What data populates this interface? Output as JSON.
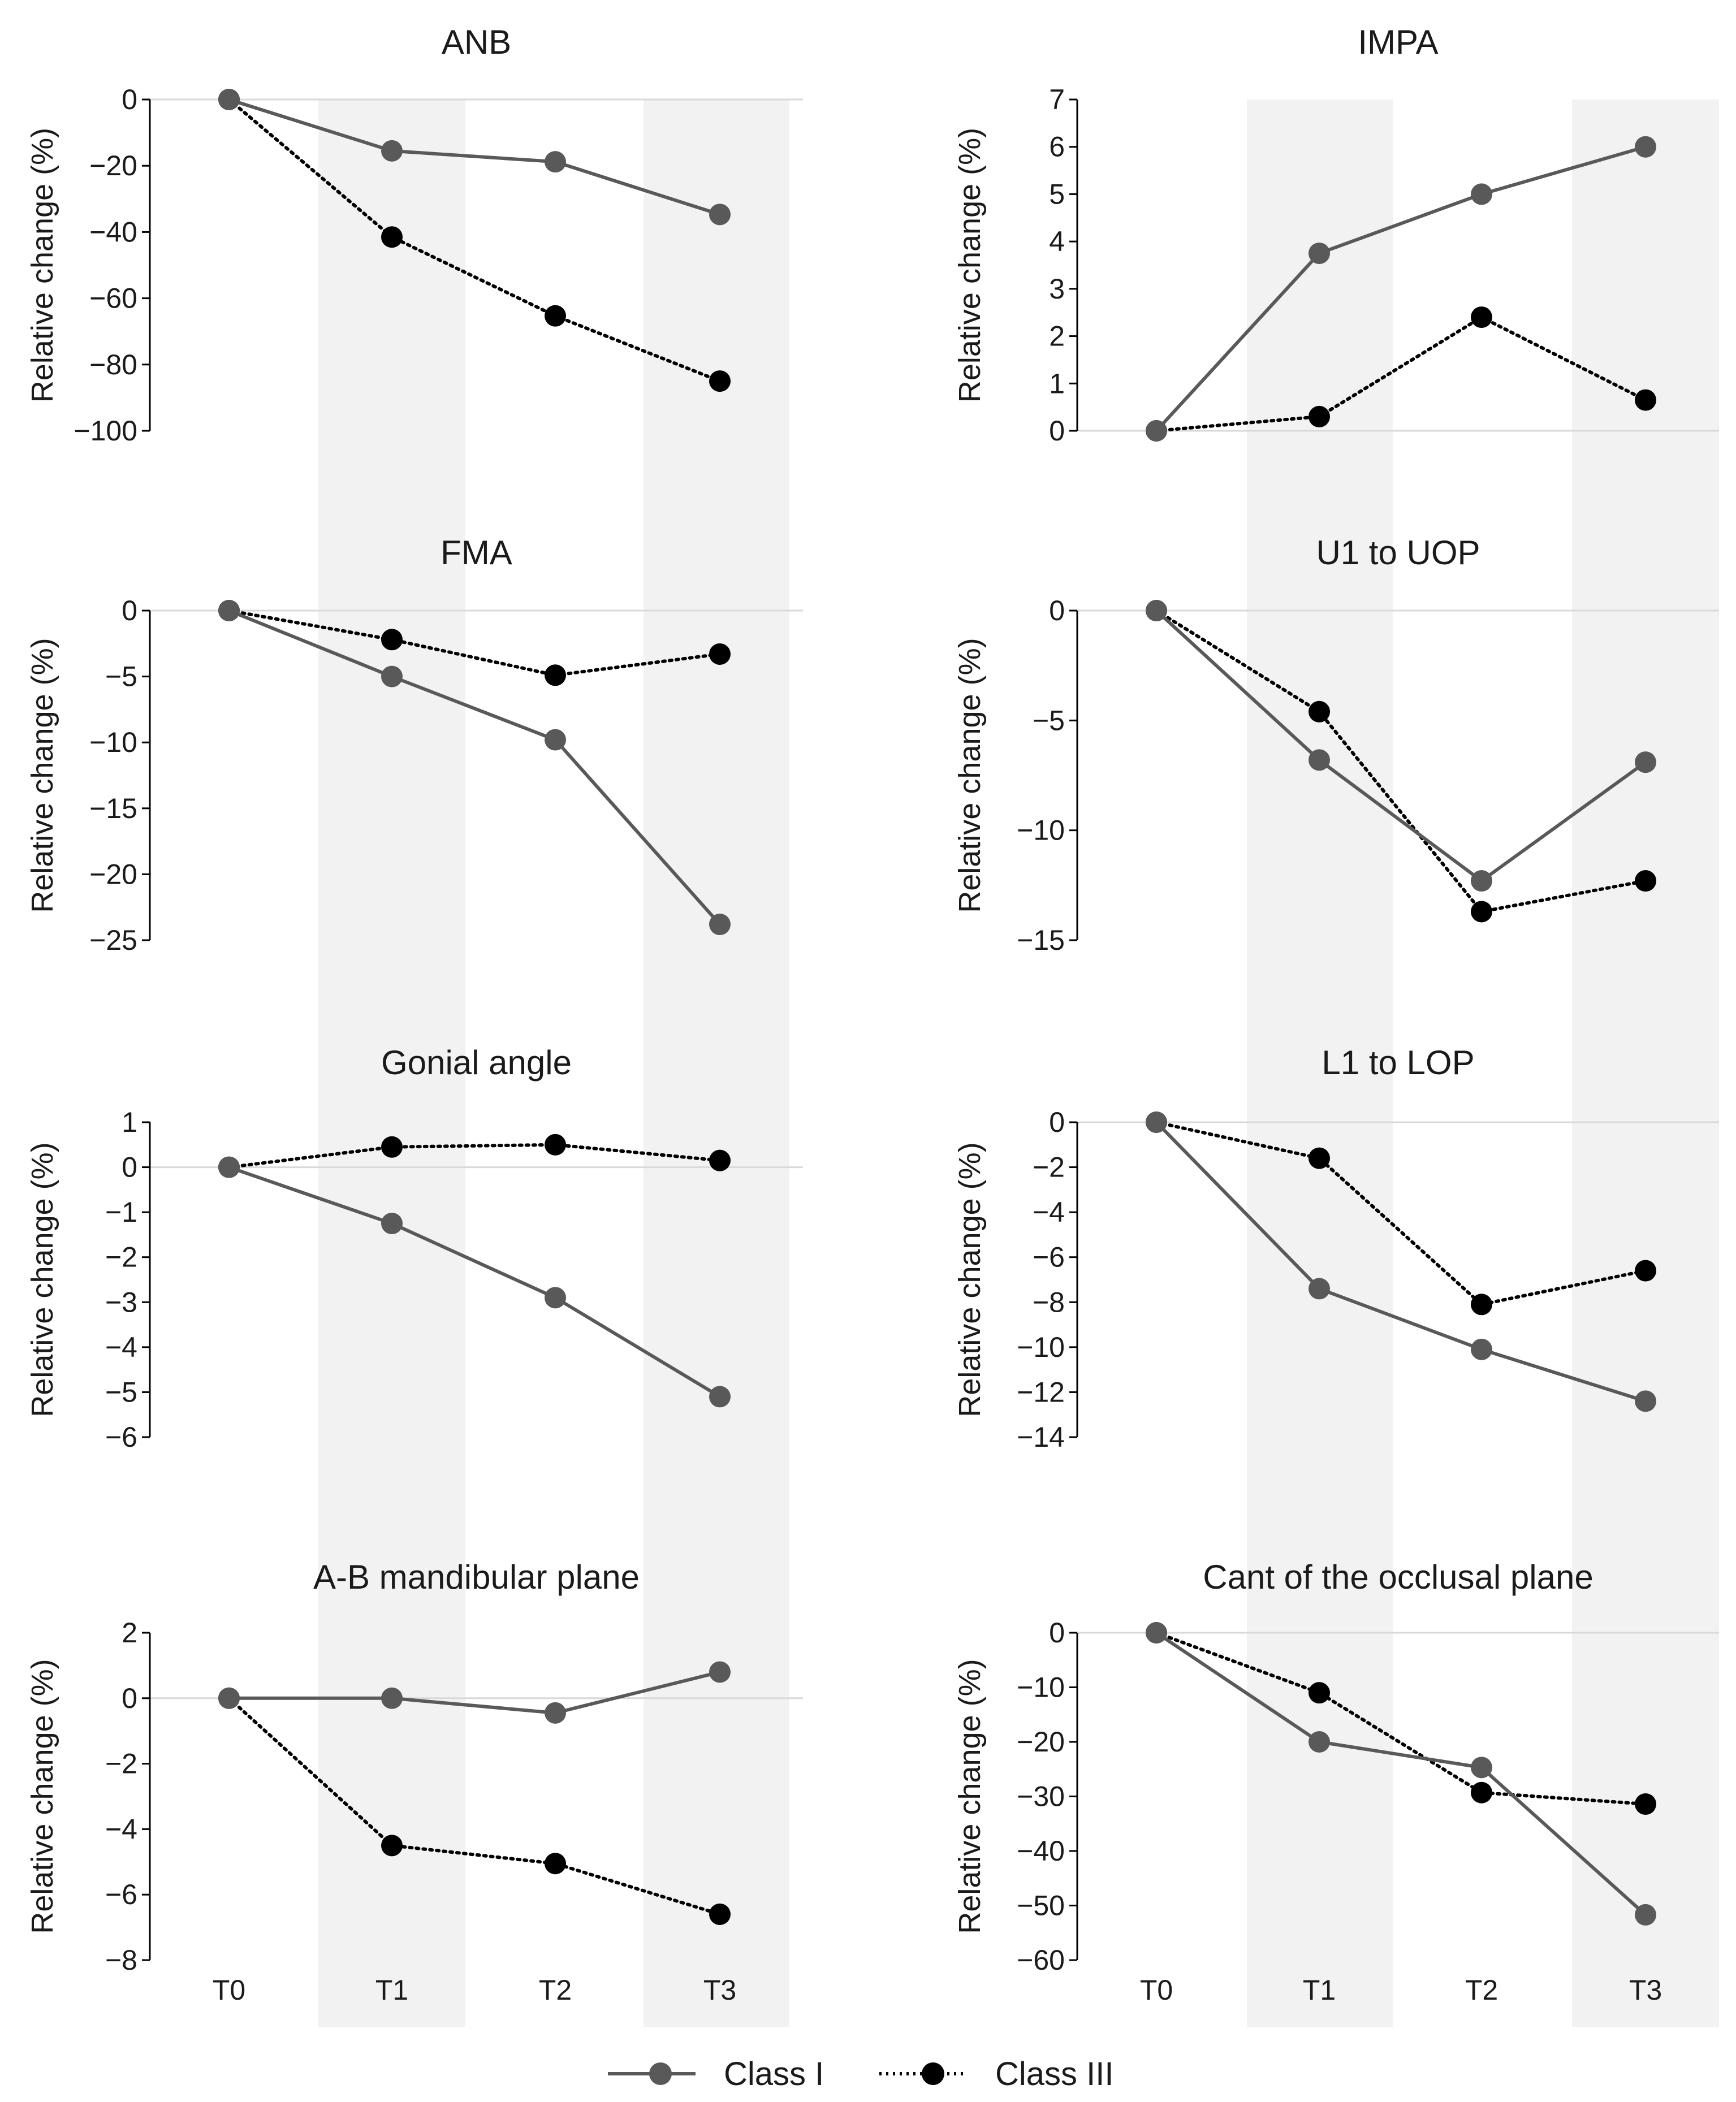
{
  "colors": {
    "class_i": "#595959",
    "class_iii": "#000000",
    "axis": "#000000",
    "zero_line": "#d9d9d9",
    "shade": "#f2f2f2"
  },
  "legend": {
    "class_i_label": "Class I",
    "class_iii_label": "Class III"
  },
  "chart_data": [
    {
      "type": "line",
      "title": "ANB",
      "ylabel": "Relative change (%)",
      "xlabel": "",
      "categories": [
        "T0",
        "T1",
        "T2",
        "T3"
      ],
      "ylim": [
        -100,
        0
      ],
      "yticks": [
        0,
        -20,
        -40,
        -60,
        -80,
        -100
      ],
      "ytick_labels": [
        "0",
        "−20",
        "−40",
        "−60",
        "−80",
        "−100"
      ],
      "shaded_categories": [
        "T1",
        "T3"
      ],
      "series": [
        {
          "name": "Class I",
          "values": [
            0,
            -15.5,
            -18.8,
            -34.7
          ]
        },
        {
          "name": "Class III",
          "values": [
            0,
            -41.5,
            -65.3,
            -85
          ]
        }
      ]
    },
    {
      "type": "line",
      "title": "IMPA",
      "ylabel": "Relative change (%)",
      "xlabel": "",
      "categories": [
        "T0",
        "T1",
        "T2",
        "T3"
      ],
      "ylim": [
        0,
        7
      ],
      "yticks": [
        7,
        6,
        5,
        4,
        3,
        2,
        1,
        0
      ],
      "ytick_labels": [
        "7",
        "6",
        "5",
        "4",
        "3",
        "2",
        "1",
        "0"
      ],
      "shaded_categories": [
        "T1",
        "T3"
      ],
      "series": [
        {
          "name": "Class I",
          "values": [
            0,
            3.75,
            5,
            6
          ]
        },
        {
          "name": "Class III",
          "values": [
            0,
            0.3,
            2.4,
            0.65
          ]
        }
      ]
    },
    {
      "type": "line",
      "title": "FMA",
      "ylabel": "Relative change (%)",
      "xlabel": "",
      "categories": [
        "T0",
        "T1",
        "T2",
        "T3"
      ],
      "ylim": [
        -25,
        0
      ],
      "yticks": [
        0,
        -5,
        -10,
        -15,
        -20,
        -25
      ],
      "ytick_labels": [
        "0",
        "−5",
        "−10",
        "−15",
        "−20",
        "−25"
      ],
      "shaded_categories": [
        "T1",
        "T3"
      ],
      "series": [
        {
          "name": "Class I",
          "values": [
            0,
            -5,
            -9.8,
            -23.8
          ]
        },
        {
          "name": "Class III",
          "values": [
            0,
            -2.2,
            -4.9,
            -3.3
          ]
        }
      ]
    },
    {
      "type": "line",
      "title": "U1 to UOP",
      "ylabel": "Relative change (%)",
      "xlabel": "",
      "categories": [
        "T0",
        "T1",
        "T2",
        "T3"
      ],
      "ylim": [
        -15,
        0
      ],
      "yticks": [
        0,
        -5,
        -10,
        -15
      ],
      "ytick_labels": [
        "0",
        "−5",
        "−10",
        "−15"
      ],
      "shaded_categories": [
        "T1",
        "T3"
      ],
      "series": [
        {
          "name": "Class I",
          "values": [
            0,
            -6.8,
            -12.3,
            -6.9
          ]
        },
        {
          "name": "Class III",
          "values": [
            0,
            -4.6,
            -13.7,
            -12.3
          ]
        }
      ]
    },
    {
      "type": "line",
      "title": "Gonial angle",
      "ylabel": "Relative change (%)",
      "xlabel": "",
      "categories": [
        "T0",
        "T1",
        "T2",
        "T3"
      ],
      "ylim": [
        -6,
        1
      ],
      "yticks": [
        1,
        0,
        -1,
        -2,
        -3,
        -4,
        -5,
        -6
      ],
      "ytick_labels": [
        "1",
        "0",
        "−1",
        "−2",
        "−3",
        "−4",
        "−5",
        "−6"
      ],
      "shaded_categories": [
        "T1",
        "T3"
      ],
      "series": [
        {
          "name": "Class I",
          "values": [
            0,
            -1.25,
            -2.9,
            -5.1
          ]
        },
        {
          "name": "Class III",
          "values": [
            0,
            0.45,
            0.5,
            0.15
          ]
        }
      ]
    },
    {
      "type": "line",
      "title": "L1 to LOP",
      "ylabel": "Relative change (%)",
      "xlabel": "",
      "categories": [
        "T0",
        "T1",
        "T2",
        "T3"
      ],
      "ylim": [
        -14,
        0
      ],
      "yticks": [
        0,
        -2,
        -4,
        -6,
        -8,
        -10,
        -12,
        -14
      ],
      "ytick_labels": [
        "0",
        "−2",
        "−4",
        "−6",
        "−8",
        "−10",
        "−12",
        "−14"
      ],
      "shaded_categories": [
        "T1",
        "T3"
      ],
      "series": [
        {
          "name": "Class I",
          "values": [
            0,
            -7.4,
            -10.1,
            -12.4
          ]
        },
        {
          "name": "Class III",
          "values": [
            0,
            -1.6,
            -8.1,
            -6.6
          ]
        }
      ]
    },
    {
      "type": "line",
      "title": "A-B mandibular plane",
      "ylabel": "Relative change (%)",
      "xlabel": "",
      "categories": [
        "T0",
        "T1",
        "T2",
        "T3"
      ],
      "ylim": [
        -8,
        2
      ],
      "yticks": [
        2,
        0,
        -2,
        -4,
        -6,
        -8
      ],
      "ytick_labels": [
        "2",
        "0",
        "−2",
        "−4",
        "−6",
        "−8"
      ],
      "shaded_categories": [
        "T1",
        "T3"
      ],
      "series": [
        {
          "name": "Class I",
          "values": [
            0,
            0,
            -0.45,
            0.8
          ]
        },
        {
          "name": "Class III",
          "values": [
            0,
            -4.5,
            -5.05,
            -6.6
          ]
        }
      ]
    },
    {
      "type": "line",
      "title": "Cant of the occlusal plane",
      "ylabel": "Relative change (%)",
      "xlabel": "",
      "categories": [
        "T0",
        "T1",
        "T2",
        "T3"
      ],
      "ylim": [
        -60,
        0
      ],
      "yticks": [
        0,
        -10,
        -20,
        -30,
        -40,
        -50,
        -60
      ],
      "ytick_labels": [
        "0",
        "−10",
        "−20",
        "−30",
        "−40",
        "−50",
        "−60"
      ],
      "shaded_categories": [
        "T1",
        "T3"
      ],
      "series": [
        {
          "name": "Class I",
          "values": [
            0,
            -20,
            -24.7,
            -51.7
          ]
        },
        {
          "name": "Class III",
          "values": [
            0,
            -11,
            -29.3,
            -31.4
          ]
        }
      ]
    }
  ]
}
